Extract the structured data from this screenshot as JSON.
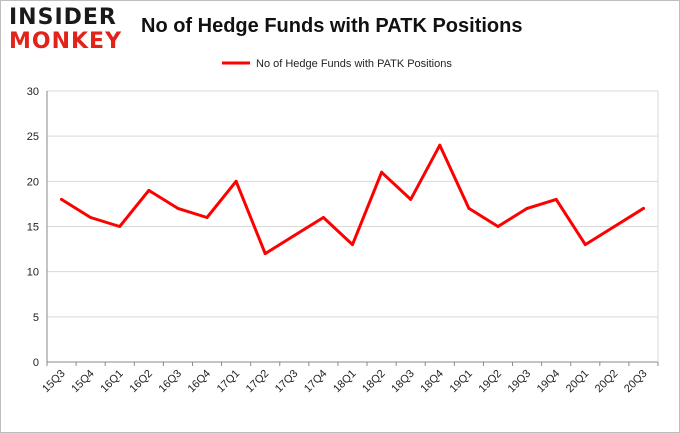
{
  "logo": {
    "line1": "INSIDER",
    "line2": "MONKEY"
  },
  "colors": {
    "line": "#ff0000",
    "grid": "#d9d9d9",
    "axis": "#888888",
    "logo_accent": "#e2231a"
  },
  "chart_data": {
    "type": "line",
    "title": "No of Hedge Funds with PATK Positions",
    "xlabel": "",
    "ylabel": "",
    "categories": [
      "15Q3",
      "15Q4",
      "16Q1",
      "16Q2",
      "16Q3",
      "16Q4",
      "17Q1",
      "17Q2",
      "17Q3",
      "17Q4",
      "18Q1",
      "18Q2",
      "18Q3",
      "18Q4",
      "19Q1",
      "19Q2",
      "19Q3",
      "19Q4",
      "20Q1",
      "20Q2",
      "20Q3"
    ],
    "series": [
      {
        "name": "No of Hedge Funds with PATK Positions",
        "values": [
          18,
          16,
          15,
          19,
          17,
          16,
          20,
          12,
          14,
          16,
          13,
          21,
          18,
          24,
          17,
          15,
          17,
          18,
          13,
          15,
          17
        ]
      }
    ],
    "ylim": [
      0,
      30
    ],
    "yticks": [
      0,
      5,
      10,
      15,
      20,
      25,
      30
    ],
    "grid": true,
    "legend": "top-center"
  }
}
